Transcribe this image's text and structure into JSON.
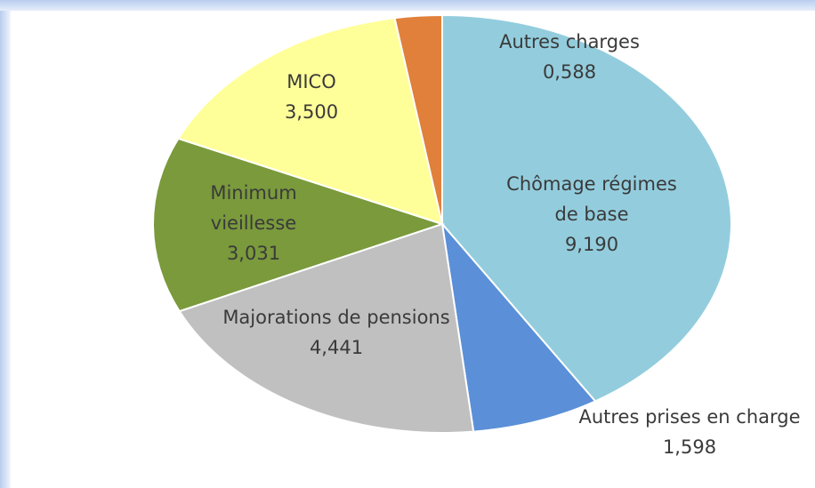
{
  "chart_data": {
    "type": "pie",
    "categories": [
      "Chômage régimes de base",
      "Autres prises en charge",
      "Majorations de pensions",
      "Minimum vieillesse",
      "MICO",
      "Autres charges"
    ],
    "values": [
      9.19,
      1.598,
      4.441,
      3.031,
      3.5,
      0.588
    ],
    "value_labels": [
      "9,190",
      "1,598",
      "4,441",
      "3,031",
      "3,500",
      "0,588"
    ],
    "colors": [
      "#93cddd",
      "#5b8fd8",
      "#c0c0c0",
      "#7a9a3c",
      "#ffff99",
      "#e0803a"
    ]
  }
}
